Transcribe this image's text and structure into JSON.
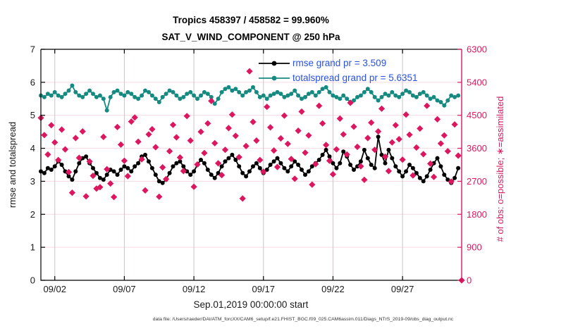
{
  "figure": {
    "title_line1": "Tropics 458397 / 458582 = 99.960%",
    "title_line2": "SAT_V_WIND_COMPONENT @ 250 hPa",
    "xlabel": "Sep.01,2019 00:00:00 start",
    "ylabel_left": "rmse and totalspread",
    "ylabel_right": "# of obs: o=possible; ∗=assimilated",
    "caption": "data file: /Users/raeder/DAI/ATM_forcXX/CAM6_setup/f.e21.FHIST_BGC.f09_025.CAM6assim.011/Diags_NTrS_2019-09/obs_diag_output.nc"
  },
  "legend": {
    "items": [
      {
        "series": "rmse",
        "label": "rmse grand pr = 3.509"
      },
      {
        "series": "totalspread",
        "label": "totalspread grand pr = 5.6351"
      }
    ]
  },
  "colors": {
    "rmse": "#000000",
    "totalspread": "#168a80",
    "obs": "#dc1760",
    "right_axis": "#dc1760",
    "legend_text": "#2a52dd",
    "grid_horizontal": "#f6d9e0",
    "grid_vertical": "#ccc4c8",
    "axis_black": "#000000"
  },
  "chart_data": {
    "type": "line",
    "title": "Tropics 458397 / 458582 = 99.960% — SAT_V_WIND_COMPONENT @ 250 hPa",
    "x_axis": {
      "label": "Sep.01,2019 00:00:00 start",
      "range_days": [
        0,
        30.25
      ],
      "x_start_day": 0,
      "x_step_days": 0.25,
      "tick_days": [
        1,
        6,
        11,
        16,
        21,
        26
      ],
      "tick_labels": [
        "09/02",
        "09/07",
        "09/12",
        "09/17",
        "09/22",
        "09/27"
      ],
      "grid": true
    },
    "y_left": {
      "label": "rmse and totalspread",
      "range": [
        0,
        7
      ],
      "ticks": [
        0,
        1,
        2,
        3,
        4,
        5,
        6,
        7
      ],
      "grid": true
    },
    "y_right": {
      "label": "# of obs: o=possible; ∗=assimilated",
      "range": [
        0,
        6300
      ],
      "ticks": [
        0,
        900,
        1800,
        2700,
        3600,
        4500,
        5400,
        6300
      ]
    },
    "legend_position": "top-right-inside",
    "series": [
      {
        "name": "rmse",
        "display": "line+marker",
        "axis": "left",
        "grand_pr": 3.509,
        "values": [
          3.3,
          3.25,
          3.4,
          3.35,
          3.45,
          3.6,
          3.5,
          3.3,
          3.15,
          3.05,
          3.3,
          3.55,
          3.7,
          3.75,
          3.55,
          3.4,
          3.25,
          3.1,
          3.05,
          3.2,
          3.35,
          3.3,
          3.2,
          3.35,
          3.45,
          3.4,
          3.3,
          3.45,
          3.55,
          3.75,
          3.8,
          3.6,
          3.4,
          3.2,
          3.0,
          2.95,
          3.05,
          3.25,
          3.45,
          3.55,
          3.6,
          3.45,
          3.3,
          3.2,
          3.3,
          3.5,
          3.65,
          3.55,
          3.35,
          3.2,
          3.1,
          3.25,
          3.45,
          3.6,
          3.7,
          3.8,
          3.65,
          3.45,
          3.25,
          3.15,
          3.3,
          3.45,
          3.55,
          3.4,
          3.25,
          3.35,
          3.5,
          3.6,
          3.7,
          3.55,
          3.4,
          3.3,
          3.45,
          3.6,
          3.5,
          3.35,
          3.2,
          3.3,
          3.45,
          3.55,
          3.65,
          3.8,
          3.95,
          3.75,
          3.55,
          3.4,
          3.55,
          3.9,
          3.75,
          3.5,
          3.35,
          3.45,
          3.6,
          3.95,
          3.7,
          3.5,
          3.4,
          4.35,
          3.8,
          3.55,
          3.95,
          3.7,
          3.45,
          3.3,
          3.15,
          3.3,
          3.5,
          3.4,
          3.25,
          3.1,
          3.0,
          3.15,
          3.35,
          3.55,
          3.7,
          3.45,
          3.2,
          3.05,
          2.95,
          3.1,
          3.4
        ]
      },
      {
        "name": "totalspread",
        "display": "line+marker",
        "axis": "left",
        "grand_pr": 5.6351,
        "values": [
          5.6,
          5.55,
          5.65,
          5.6,
          5.7,
          5.6,
          5.55,
          5.65,
          5.75,
          5.9,
          5.7,
          5.6,
          5.55,
          5.65,
          5.75,
          5.65,
          5.55,
          5.6,
          5.5,
          5.15,
          5.55,
          5.7,
          5.75,
          5.65,
          5.6,
          5.7,
          5.65,
          5.55,
          5.5,
          5.6,
          5.75,
          5.7,
          5.6,
          5.5,
          5.4,
          5.55,
          5.65,
          5.75,
          5.7,
          5.6,
          5.5,
          5.55,
          5.65,
          5.7,
          5.6,
          5.5,
          5.6,
          5.7,
          5.65,
          5.55,
          5.35,
          5.5,
          5.7,
          5.8,
          5.85,
          5.75,
          5.8,
          5.7,
          5.6,
          5.7,
          5.75,
          5.85,
          5.7,
          5.55,
          5.6,
          5.5,
          5.6,
          5.65,
          5.7,
          5.65,
          5.55,
          5.6,
          5.65,
          5.75,
          5.6,
          5.5,
          5.55,
          5.65,
          5.7,
          5.6,
          5.7,
          5.8,
          5.85,
          5.7,
          5.6,
          5.55,
          5.5,
          5.6,
          5.5,
          5.4,
          5.45,
          5.55,
          5.6,
          5.7,
          5.8,
          5.7,
          5.55,
          5.45,
          5.55,
          5.65,
          5.6,
          5.7,
          5.6,
          5.55,
          5.65,
          5.75,
          5.7,
          5.6,
          5.55,
          5.65,
          5.7,
          5.6,
          5.5,
          5.55,
          5.45,
          5.4,
          5.3,
          5.45,
          5.6,
          5.55,
          5.6
        ]
      },
      {
        "name": "obs_count",
        "display": "scatter-diamond",
        "axis": "right",
        "note": "o=possible and ∗=assimilated markers overlap (99.960% assimilated)",
        "values": [
          4430,
          3960,
          3430,
          4230,
          3760,
          3280,
          4110,
          3570,
          2950,
          2390,
          3880,
          3340,
          4060,
          2290,
          3240,
          2850,
          2500,
          2540,
          3910,
          3030,
          2640,
          2270,
          4180,
          3700,
          3260,
          2840,
          4330,
          4440,
          3780,
          3300,
          2450,
          3980,
          4120,
          3630,
          2280,
          3080,
          2760,
          3520,
          4240,
          3900,
          3350,
          2980,
          4480,
          3810,
          2550,
          3160,
          4050,
          3470,
          4280,
          4890,
          3740,
          3190,
          2870,
          3560,
          4150,
          4520,
          3940,
          3360,
          2230,
          3660,
          5700,
          4320,
          3810,
          3280,
          2960,
          4730,
          4170,
          3540,
          3090,
          3870,
          4490,
          3720,
          3310,
          2770,
          4080,
          4600,
          3480,
          3950,
          2610,
          3170,
          4760,
          4280,
          3690,
          3260,
          2890,
          3570,
          4410,
          3980,
          3430,
          4840,
          4190,
          3640,
          3110,
          2740,
          3880,
          4300,
          3560,
          4060,
          4680,
          3370,
          2980,
          3760,
          4230,
          3850,
          3290,
          4520,
          3970,
          2860,
          3620,
          4140,
          3440,
          4760,
          3180,
          2820,
          4390,
          3730,
          3950,
          3520,
          2690,
          4250,
          3400
        ],
        "final_point": {
          "day": 30.25,
          "value": 0
        }
      }
    ]
  }
}
